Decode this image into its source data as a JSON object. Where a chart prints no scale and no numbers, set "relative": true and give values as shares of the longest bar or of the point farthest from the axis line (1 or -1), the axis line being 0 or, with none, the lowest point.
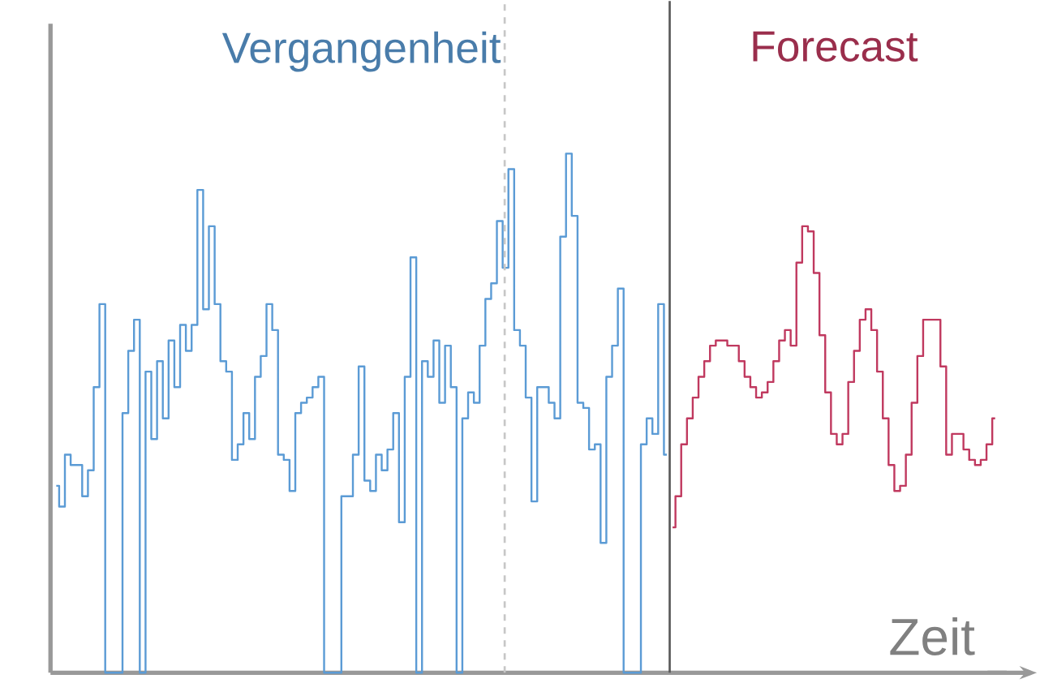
{
  "chart_data": {
    "type": "step",
    "relative": true,
    "xlabel": "Zeit",
    "legend": false,
    "categories": [
      null,
      null,
      null,
      null,
      null,
      null,
      null,
      null,
      null,
      null,
      null,
      null,
      null,
      null,
      null,
      null,
      null,
      null,
      null,
      null,
      null,
      null,
      null,
      null,
      null,
      null,
      null,
      null,
      null,
      null,
      null,
      null,
      null,
      null,
      null,
      null,
      null,
      null,
      null,
      null,
      null,
      null,
      null,
      null,
      null,
      null,
      null,
      null,
      null,
      null,
      null,
      null,
      null,
      null,
      null,
      null,
      null,
      null,
      null,
      null,
      null,
      null,
      null,
      null,
      null,
      null,
      null,
      null,
      null,
      null,
      null,
      null,
      null,
      null,
      null,
      null,
      null,
      null,
      null,
      null,
      null,
      null,
      null,
      null,
      null,
      null,
      null,
      null,
      null,
      null,
      null,
      null,
      null,
      null,
      null,
      null,
      null,
      null,
      null,
      null,
      null,
      null,
      null,
      null,
      null,
      null,
      null,
      null,
      null,
      null,
      null,
      null,
      null,
      null,
      null,
      null,
      null,
      null,
      null,
      null,
      null,
      null,
      null,
      null,
      null,
      null,
      null,
      null,
      null,
      null,
      null,
      null,
      null,
      null,
      null,
      null,
      null,
      null,
      null,
      null,
      null,
      null,
      null,
      null,
      null,
      null,
      null,
      null,
      null,
      null,
      null,
      null,
      null,
      null,
      null,
      null,
      null,
      null,
      null,
      null,
      null,
      null,
      null,
      null
    ],
    "series": [
      {
        "name": "Vergangenheit",
        "color": "#5b9bd5",
        "values": [
          0.36,
          0.32,
          0.42,
          0.4,
          0.4,
          0.34,
          0.39,
          0.55,
          0.71,
          0,
          0,
          0,
          0.5,
          0.62,
          0.68,
          0,
          0.58,
          0.45,
          0.6,
          0.49,
          0.64,
          0.55,
          0.67,
          0.62,
          0.67,
          0.93,
          0.7,
          0.86,
          0.71,
          0.6,
          0.58,
          0.41,
          0.44,
          0.5,
          0.45,
          0.57,
          0.61,
          0.71,
          0.66,
          0.42,
          0.41,
          0.35,
          0.5,
          0.52,
          0.53,
          0.55,
          0.57,
          0,
          0,
          0,
          0.34,
          0.34,
          0.42,
          0.59,
          0.37,
          0.35,
          0.42,
          0.39,
          0.43,
          0.5,
          0.29,
          0.57,
          0.8,
          0,
          0.6,
          0.57,
          0.64,
          0.52,
          0.63,
          0.55,
          0,
          0.49,
          0.54,
          0.52,
          0.63,
          0.72,
          0.75,
          0.87,
          0.78,
          0.97,
          0.66,
          0.63,
          0.53,
          0.33,
          0.55,
          0.55,
          0.52,
          0.49,
          0.84,
          1.0,
          0.88,
          0.52,
          0.51,
          0.43,
          0.44,
          0.25,
          0.57,
          0.63,
          0.74,
          0,
          0,
          0,
          0.44,
          0.49,
          0.46,
          0.71,
          0.42,
          null,
          null,
          null,
          null,
          null,
          null,
          null,
          null,
          null,
          null,
          null,
          null,
          null,
          null,
          null,
          null,
          null,
          null,
          null,
          null,
          null,
          null,
          null,
          null,
          null,
          null,
          null,
          null,
          null,
          null,
          null,
          null,
          null,
          null,
          null,
          null,
          null,
          null,
          null,
          null,
          null,
          null,
          null,
          null,
          null,
          null,
          null,
          null,
          null,
          null,
          null,
          null,
          null,
          null,
          null,
          null,
          null
        ]
      },
      {
        "name": "Forecast",
        "color": "#c0395f",
        "values": [
          null,
          null,
          null,
          null,
          null,
          null,
          null,
          null,
          null,
          null,
          null,
          null,
          null,
          null,
          null,
          null,
          null,
          null,
          null,
          null,
          null,
          null,
          null,
          null,
          null,
          null,
          null,
          null,
          null,
          null,
          null,
          null,
          null,
          null,
          null,
          null,
          null,
          null,
          null,
          null,
          null,
          null,
          null,
          null,
          null,
          null,
          null,
          null,
          null,
          null,
          null,
          null,
          null,
          null,
          null,
          null,
          null,
          null,
          null,
          null,
          null,
          null,
          null,
          null,
          null,
          null,
          null,
          null,
          null,
          null,
          null,
          null,
          null,
          null,
          null,
          null,
          null,
          null,
          null,
          null,
          null,
          null,
          null,
          null,
          null,
          null,
          null,
          null,
          null,
          null,
          null,
          null,
          null,
          null,
          null,
          null,
          null,
          null,
          null,
          null,
          null,
          null,
          null,
          null,
          null,
          null,
          null,
          0.28,
          0.34,
          0.44,
          0.49,
          0.53,
          0.57,
          0.6,
          0.63,
          0.64,
          0.64,
          0.63,
          0.63,
          0.6,
          0.57,
          0.55,
          0.53,
          0.54,
          0.56,
          0.6,
          0.64,
          0.66,
          0.63,
          0.79,
          0.86,
          0.85,
          0.77,
          0.65,
          0.54,
          0.46,
          0.44,
          0.46,
          0.56,
          0.62,
          0.68,
          0.7,
          0.66,
          0.58,
          0.49,
          0.4,
          0.35,
          0.36,
          0.42,
          0.52,
          0.61,
          0.68,
          0.68,
          0.68,
          0.59,
          0.42,
          0.46,
          0.46,
          0.43,
          0.41,
          0.4,
          0.41,
          0.44,
          0.49
        ]
      }
    ]
  }
}
